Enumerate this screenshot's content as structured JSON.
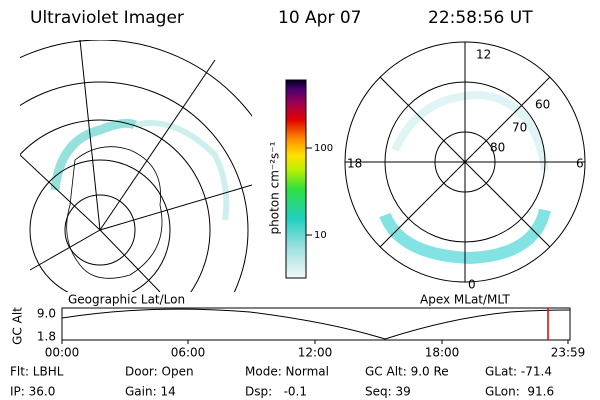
{
  "header": {
    "title": "Ultraviolet Imager",
    "date": "10 Apr 07",
    "time": "22:58:56 UT"
  },
  "left_map": {
    "label": "Geographic Lat/Lon"
  },
  "right_map": {
    "label": "Apex MLat/MLT",
    "hours": [
      "12",
      "18",
      "6",
      "0"
    ],
    "latitudes": [
      "60",
      "70",
      "80"
    ]
  },
  "colorbar": {
    "label": "photon cm⁻²s⁻¹",
    "ticks": [
      "100",
      "10"
    ]
  },
  "timeline": {
    "axis_label": "GC Alt",
    "y_labels": [
      "9.0",
      "1.8"
    ],
    "x_labels": [
      "00:00",
      "06:00",
      "12:00",
      "18:00",
      "23:59"
    ]
  },
  "footer": {
    "rows": [
      [
        "Flt: LBHL",
        "Door: Open",
        "Mode: Normal",
        "GC Alt: 9.0 Re",
        "GLat: -71.4"
      ],
      [
        "IP: 36.0",
        "Gain: 14",
        "Dsp:   -0.1",
        "Seq: 39",
        "GLon:  91.6"
      ]
    ]
  }
}
